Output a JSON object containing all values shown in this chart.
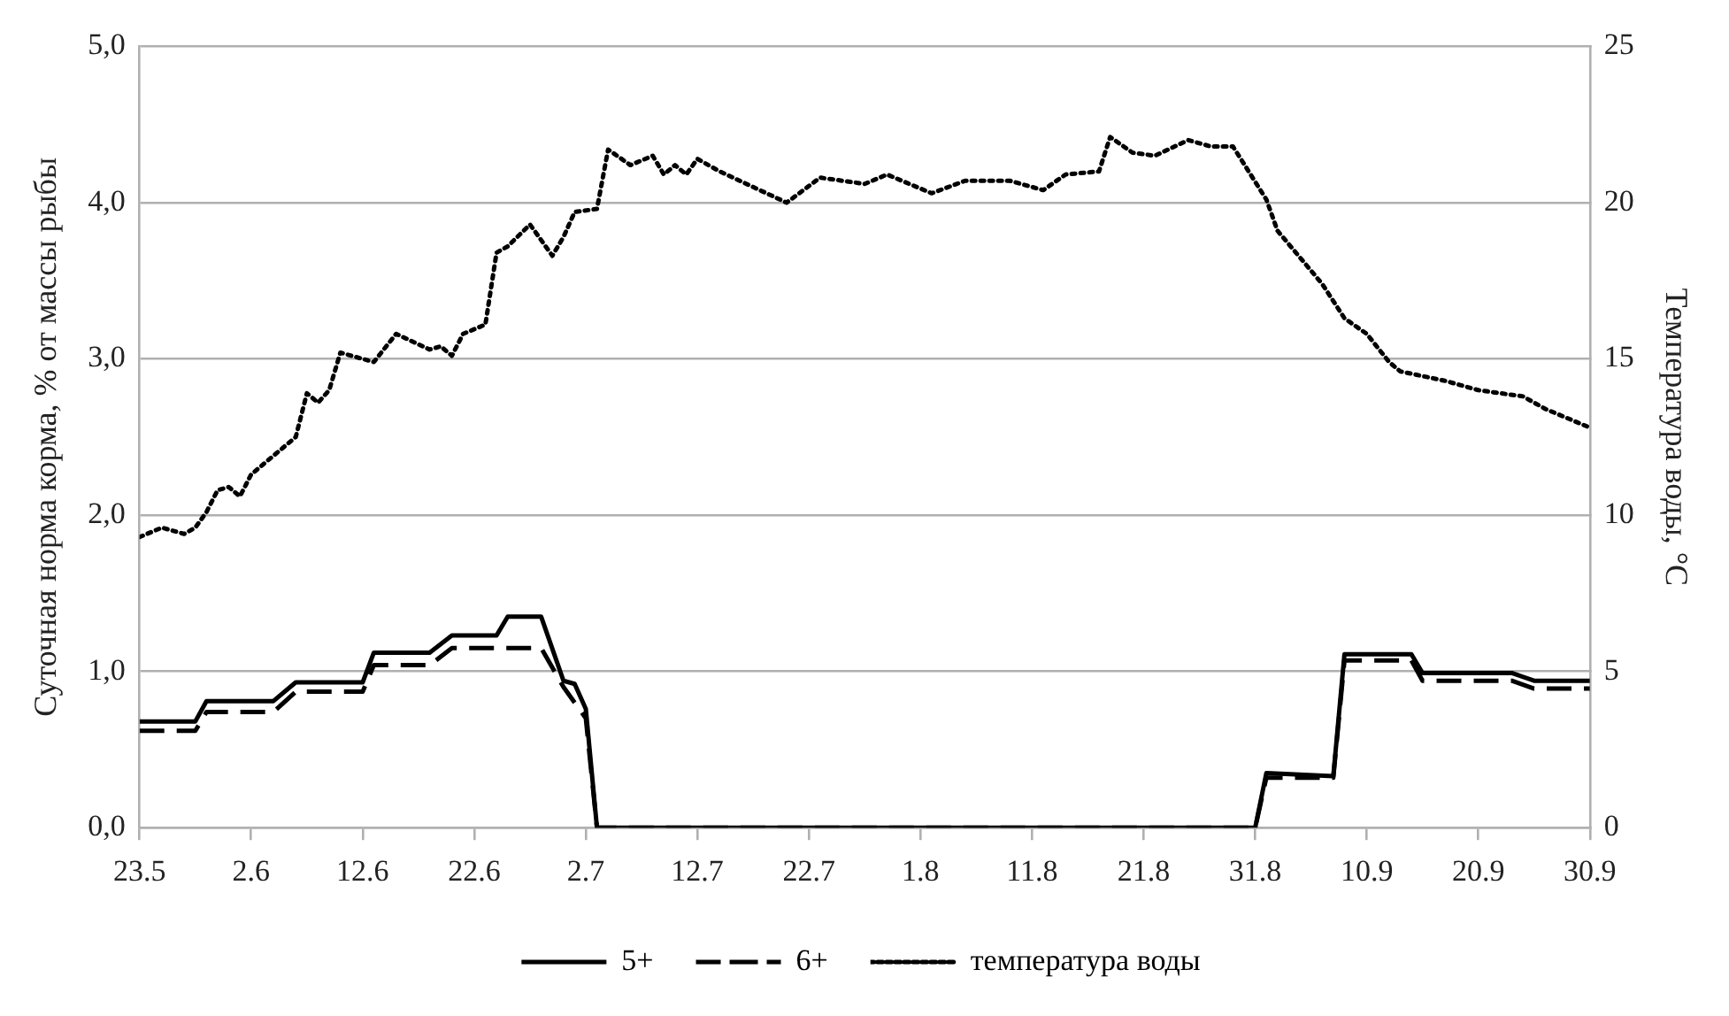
{
  "chart_data": {
    "type": "line",
    "ylabel": "Суточная норма корма, % от массы рыбы",
    "y2label": "Температура воды, °C",
    "xlim": [
      "--05-23",
      "--09-30"
    ],
    "xticks": [
      {
        "value": "--05-23",
        "label": "23.5"
      },
      {
        "value": "--06-02",
        "label": "2.6"
      },
      {
        "value": "--06-12",
        "label": "12.6"
      },
      {
        "value": "--06-22",
        "label": "22.6"
      },
      {
        "value": "--07-02",
        "label": "2.7"
      },
      {
        "value": "--07-12",
        "label": "12.7"
      },
      {
        "value": "--07-22",
        "label": "22.7"
      },
      {
        "value": "--08-01",
        "label": "1.8"
      },
      {
        "value": "--08-11",
        "label": "11.8"
      },
      {
        "value": "--08-21",
        "label": "21.8"
      },
      {
        "value": "--08-31",
        "label": "31.8"
      },
      {
        "value": "--09-10",
        "label": "10.9"
      },
      {
        "value": "--09-20",
        "label": "20.9"
      },
      {
        "value": "--09-30",
        "label": "30.9"
      }
    ],
    "ylim": [
      0,
      5
    ],
    "yticks": [
      {
        "value": 0,
        "label": "0,0"
      },
      {
        "value": 1,
        "label": "1,0"
      },
      {
        "value": 2,
        "label": "2,0"
      },
      {
        "value": 3,
        "label": "3,0"
      },
      {
        "value": 4,
        "label": "4,0"
      },
      {
        "value": 5,
        "label": "5,0"
      }
    ],
    "y2lim": [
      0,
      25
    ],
    "y2ticks": [
      0,
      5,
      10,
      15,
      20,
      25
    ],
    "grid": "y",
    "legend": "bottom",
    "series": [
      {
        "name": "5+",
        "color": "#000000",
        "line_style": "solid",
        "x": [
          "--05-23",
          "--05-28",
          "--05-29",
          "--06-04",
          "--06-06",
          "--06-12",
          "--06-13",
          "--06-18",
          "--06-20",
          "--06-24",
          "--06-25",
          "--06-28",
          "--06-30",
          "--07-01",
          "--07-02",
          "--07-03",
          "--08-31",
          "--09-01",
          "--09-07",
          "--09-08",
          "--09-14",
          "--09-15",
          "--09-23",
          "--09-25",
          "--09-30"
        ],
        "values": [
          0.68,
          0.68,
          0.81,
          0.81,
          0.93,
          0.93,
          1.12,
          1.12,
          1.23,
          1.23,
          1.35,
          1.35,
          0.94,
          0.92,
          0.76,
          0,
          0,
          0.35,
          0.33,
          1.11,
          1.11,
          0.99,
          0.99,
          0.94,
          0.94
        ]
      },
      {
        "name": "6+",
        "color": "#000000",
        "line_style": "dashed",
        "x": [
          "--05-23",
          "--05-28",
          "--05-29",
          "--06-04",
          "--06-06",
          "--06-12",
          "--06-13",
          "--06-18",
          "--06-20",
          "--06-28",
          "--06-30",
          "--07-02",
          "--07-03",
          "--08-31",
          "--09-01",
          "--09-07",
          "--09-08",
          "--09-14",
          "--09-15",
          "--09-23",
          "--09-25",
          "--09-30"
        ],
        "values": [
          0.62,
          0.62,
          0.74,
          0.74,
          0.87,
          0.87,
          1.04,
          1.04,
          1.15,
          1.15,
          0.9,
          0.7,
          0,
          0,
          0.32,
          0.32,
          1.07,
          1.07,
          0.94,
          0.94,
          0.89,
          0.89
        ]
      },
      {
        "name": "температура воды",
        "color": "#000000",
        "line_style": "dotted",
        "axis": "y2",
        "x": [
          "--05-23",
          "--05-25",
          "--05-27",
          "--05-28",
          "--05-29",
          "--05-30",
          "--05-31",
          "--06-01",
          "--06-02",
          "--06-04",
          "--06-06",
          "--06-07",
          "--06-08",
          "--06-09",
          "--06-10",
          "--06-13",
          "--06-15",
          "--06-18",
          "--06-19",
          "--06-20",
          "--06-21",
          "--06-23",
          "--06-24",
          "--06-25",
          "--06-27",
          "--06-29",
          "--06-30",
          "--07-01",
          "--07-03",
          "--07-04",
          "--07-06",
          "--07-08",
          "--07-09",
          "--07-10",
          "--07-11",
          "--07-12",
          "--07-14",
          "--07-17",
          "--07-20",
          "--07-23",
          "--07-27",
          "--07-29",
          "--08-02",
          "--08-05",
          "--08-09",
          "--08-12",
          "--08-14",
          "--08-17",
          "--08-18",
          "--08-20",
          "--08-22",
          "--08-25",
          "--08-27",
          "--08-29",
          "--09-01",
          "--09-02",
          "--09-06",
          "--09-08",
          "--09-10",
          "--09-12",
          "--09-13",
          "--09-17",
          "--09-20",
          "--09-24",
          "--09-26",
          "--09-30"
        ],
        "values": [
          9.3,
          9.6,
          9.4,
          9.6,
          10.1,
          10.8,
          10.9,
          10.6,
          11.3,
          11.9,
          12.5,
          13.9,
          13.6,
          14.0,
          15.2,
          14.9,
          15.8,
          15.3,
          15.4,
          15.1,
          15.8,
          16.1,
          18.4,
          18.6,
          19.3,
          18.3,
          18.9,
          19.7,
          19.8,
          21.7,
          21.2,
          21.5,
          20.9,
          21.2,
          20.9,
          21.4,
          21.0,
          20.5,
          20.0,
          20.8,
          20.6,
          20.9,
          20.3,
          20.7,
          20.7,
          20.4,
          20.9,
          21.0,
          22.1,
          21.6,
          21.5,
          22.0,
          21.8,
          21.8,
          20.1,
          19.1,
          17.4,
          16.3,
          15.8,
          14.9,
          14.6,
          14.3,
          14.0,
          13.8,
          13.4,
          12.8
        ]
      }
    ]
  }
}
